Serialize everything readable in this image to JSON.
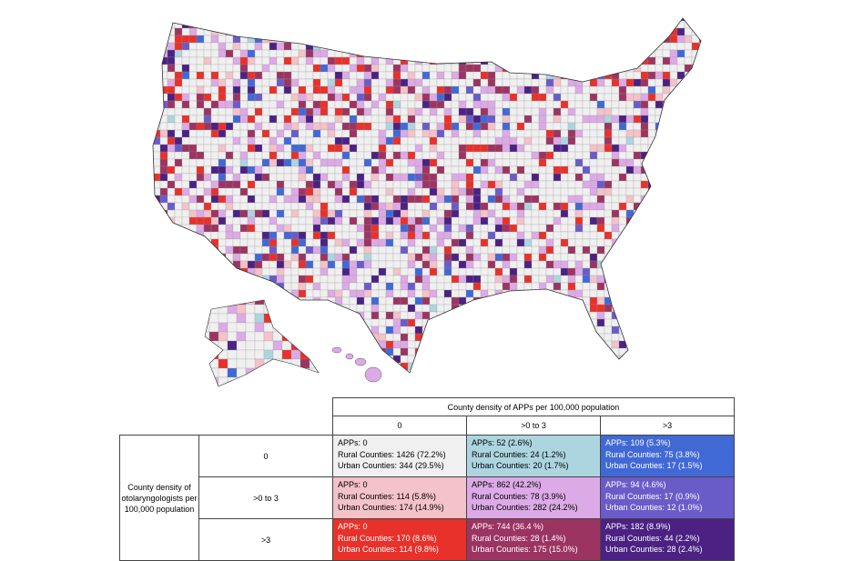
{
  "legend": {
    "column_title": "County density of APPs per 100,000 population",
    "row_title": "County density of otolaryngologists per 100,000 population",
    "columns": [
      "0",
      ">0 to 3",
      ">3"
    ],
    "rows": [
      {
        "label": "0",
        "cells": [
          {
            "apps": "APPs: 0",
            "rural": "Rural Counties: 1426 (72.2%)",
            "urban": "Urban Counties: 344 (29.5%)",
            "color": "#f0f0f0"
          },
          {
            "apps": "APPs: 52 (2.6%)",
            "rural": "Rural Counties: 24 (1.2%)",
            "urban": "Urban Counties: 20 (1.7%)",
            "color": "#acd5e0"
          },
          {
            "apps": "APPs: 109 (5.3%)",
            "rural": "Rural Counties: 75 (3.8%)",
            "urban": "Urban Counties: 17 (1.5%)",
            "color": "#4169d6"
          }
        ]
      },
      {
        "label": ">0 to 3",
        "cells": [
          {
            "apps": "APPs: 0",
            "rural": "Rural Counties: 114 (5.8%)",
            "urban": "Urban Counties: 174 (14.9%)",
            "color": "#f4c2c9"
          },
          {
            "apps": "APPs: 862 (42.2%)",
            "rural": "Rural Counties: 78 (3.9%)",
            "urban": "Urban Counties: 282 (24.2%)",
            "color": "#dcaae6"
          },
          {
            "apps": "APPs: 94 (4.6%)",
            "rural": "Rural Counties: 17 (0.9%)",
            "urban": "Urban Counties: 12 (1.0%)",
            "color": "#6a5cc8"
          }
        ]
      },
      {
        "label": ">3",
        "cells": [
          {
            "apps": "APPs: 0",
            "rural": "Rural Counties: 170 (8.6%)",
            "urban": "Urban Counties: 114 (9.8%)",
            "color": "#e8312a"
          },
          {
            "apps": "APPs: 744 (36.4 %)",
            "rural": "Rural Counties: 28 (1.4%)",
            "urban": "Urban Counties: 175 (15.0%)",
            "color": "#9c3461"
          },
          {
            "apps": "APPs: 182 (8.9%)",
            "rural": "Rural Counties: 44 (2.2%)",
            "urban": "Urban Counties: 28 (2.4%)",
            "color": "#4b2183"
          }
        ]
      }
    ]
  }
}
